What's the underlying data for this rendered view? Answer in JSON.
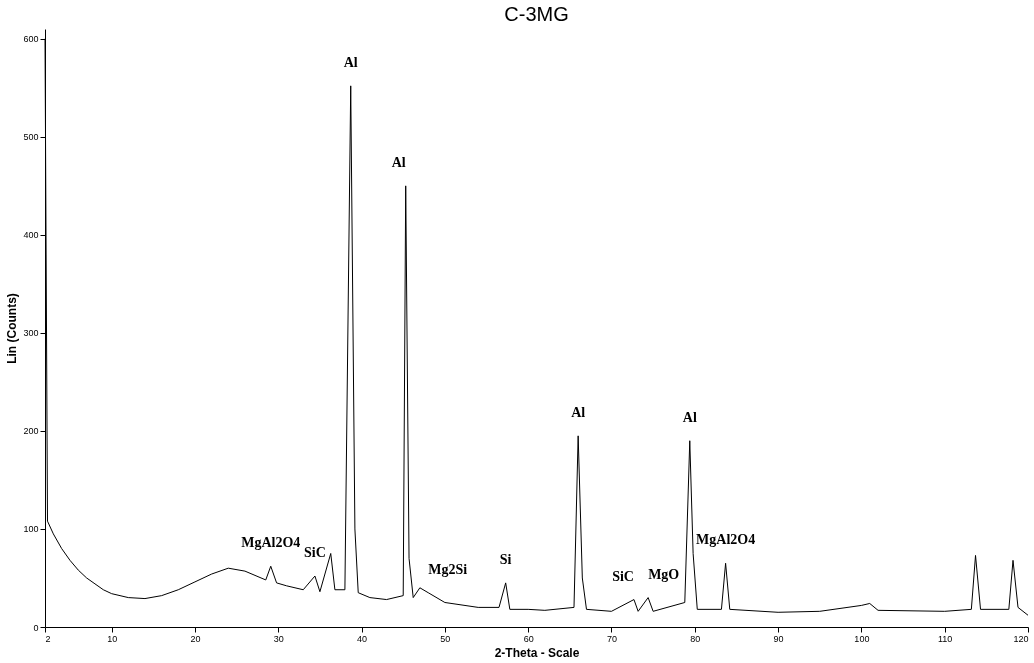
{
  "chart_data": {
    "type": "line",
    "title": "C-3MG",
    "xlabel": "2-Theta - Scale",
    "ylabel": "Lin (Counts)",
    "x": [
      2.0,
      2.3,
      3,
      4,
      5,
      6,
      7,
      8,
      9,
      10,
      12,
      14,
      16,
      18,
      20,
      22,
      24,
      26,
      28.5,
      29.1,
      29.8,
      31,
      33,
      34.4,
      35,
      36.3,
      36.8,
      38.0,
      38.7,
      39.2,
      39.6,
      41,
      43,
      45.0,
      45.3,
      45.7,
      46.2,
      47,
      48,
      50,
      54,
      56.5,
      57.3,
      57.8,
      60,
      62,
      65.5,
      66,
      66.5,
      67,
      70,
      72.7,
      73.2,
      74.4,
      75,
      78.8,
      79.4,
      79.8,
      80.3,
      83.2,
      83.7,
      84.2,
      90,
      95,
      100,
      101,
      102,
      110,
      113.2,
      113.7,
      114.3,
      117.7,
      118.2,
      118.8,
      120
    ],
    "series": [
      {
        "color": "#000000",
        "values": [
          600,
          108,
          95,
          80,
          68,
          58,
          50,
          44,
          38,
          34,
          30,
          29,
          32,
          38,
          46,
          54,
          60,
          57,
          48,
          62,
          45,
          42,
          38,
          52,
          36,
          75,
          38,
          38,
          552,
          100,
          35,
          30,
          28,
          32,
          450,
          70,
          30,
          40,
          35,
          25,
          20,
          20,
          45,
          18,
          18,
          17,
          20,
          195,
          50,
          18,
          16,
          28,
          16,
          30,
          16,
          25,
          190,
          75,
          18,
          18,
          65,
          18,
          15,
          16,
          22,
          24,
          17,
          16,
          18,
          73,
          18,
          18,
          68,
          20,
          12
        ]
      }
    ],
    "xlim": [
      2,
      120
    ],
    "xticks": [
      2,
      10,
      20,
      30,
      40,
      50,
      60,
      70,
      80,
      90,
      100,
      110,
      120
    ],
    "ylim": [
      0,
      610
    ],
    "yticks": [
      0,
      100,
      200,
      300,
      400,
      500,
      600
    ],
    "grid": false,
    "marker": "none",
    "line_style": "solid",
    "annotations": [
      {
        "text": "MgAl2O4",
        "x": 29.1,
        "y": 62
      },
      {
        "text": "SiC",
        "x": 34.4,
        "y": 52
      },
      {
        "text": "Al",
        "x": 38.7,
        "y": 552
      },
      {
        "text": "Al",
        "x": 45.3,
        "y": 450
      },
      {
        "text": "Mg2Si",
        "x": 48,
        "y": 35
      },
      {
        "text": "Si",
        "x": 57.3,
        "y": 45
      },
      {
        "text": "Al",
        "x": 66,
        "y": 195
      },
      {
        "text": "SiC",
        "x": 72.7,
        "y": 28
      },
      {
        "text": "MgO",
        "x": 74.4,
        "y": 30
      },
      {
        "text": "Al",
        "x": 79.4,
        "y": 190
      },
      {
        "text": "MgAl2O4",
        "x": 83.7,
        "y": 65
      }
    ]
  }
}
